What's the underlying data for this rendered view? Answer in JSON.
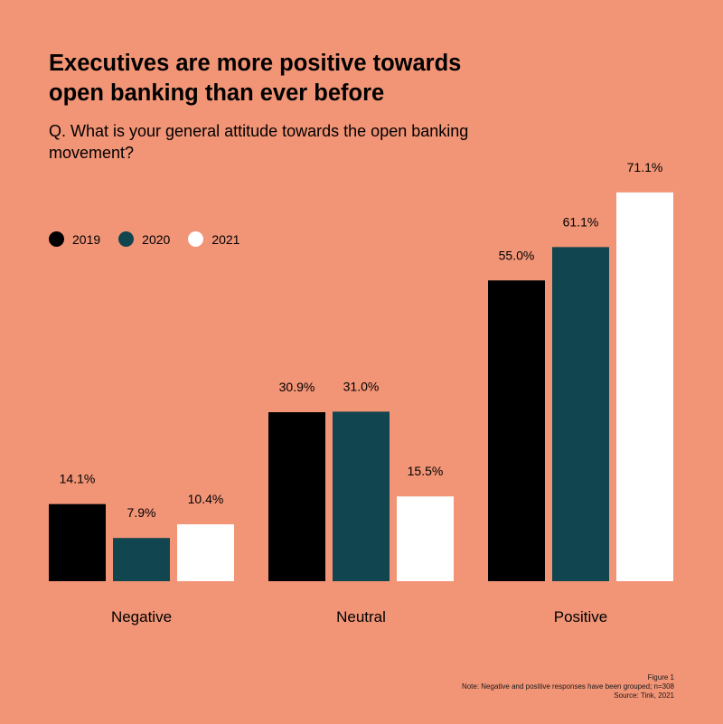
{
  "chart_data": {
    "type": "bar",
    "title": "Executives are more positive towards open banking than ever before",
    "subtitle": "Q. What is your general attitude towards the open banking movement?",
    "categories": [
      "Negative",
      "Neutral",
      "Positive"
    ],
    "series": [
      {
        "name": "2019",
        "color": "#000000",
        "values": [
          14.1,
          30.9,
          55.0
        ],
        "labels": [
          "14.1%",
          "30.9%",
          "55.0%"
        ]
      },
      {
        "name": "2020",
        "color": "#11454F",
        "values": [
          7.9,
          31.0,
          61.1
        ],
        "labels": [
          "7.9%",
          "31.0%",
          "61.1%"
        ]
      },
      {
        "name": "2021",
        "color": "#FFFFFF",
        "values": [
          10.4,
          15.5,
          71.1
        ],
        "labels": [
          "10.4%",
          "15.5%",
          "71.1%"
        ]
      }
    ],
    "xlabel": "",
    "ylabel": "",
    "ylim": [
      0,
      100
    ],
    "grid": false,
    "legend_position": "top-left"
  },
  "footnote": {
    "figure": "Figure 1",
    "note": "Note: Negative and positive responses have been grouped; n=308",
    "source": "Source: Tink, 2021"
  }
}
